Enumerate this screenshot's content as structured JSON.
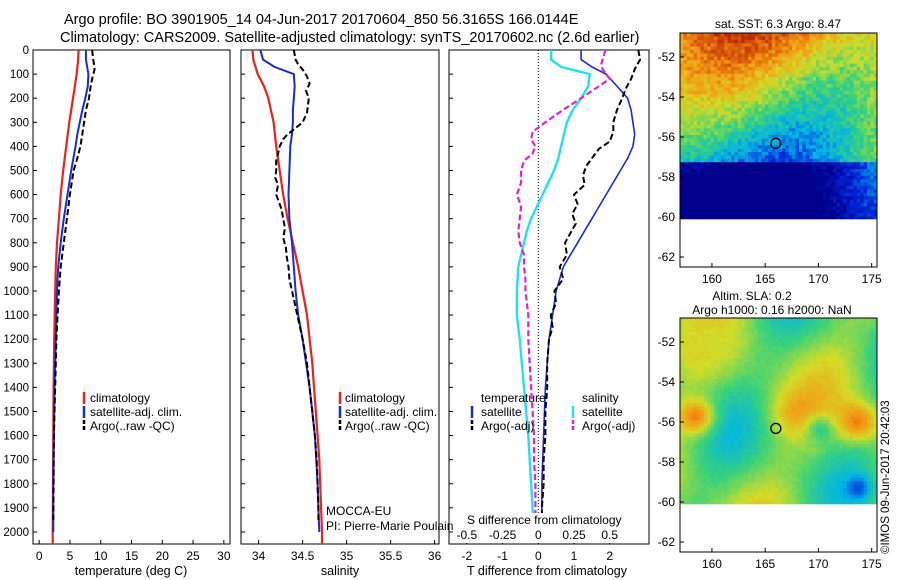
{
  "header": {
    "line1": "Argo profile: BO 3901905_14 04-Jun-2017 20170604_850 56.3165S 166.0144E",
    "line2": "Climatology: CARS2009. Satellite-adjusted climatology: synTS_20170602.nc (2.6d earlier)"
  },
  "depth_ticks": [
    "0",
    "100",
    "200",
    "300",
    "400",
    "500",
    "600",
    "700",
    "800",
    "900",
    "1000",
    "1100",
    "1200",
    "1300",
    "1400",
    "1500",
    "1600",
    "1700",
    "1800",
    "1900",
    "2000"
  ],
  "colors": {
    "climatology": "#e8231b",
    "satellite": "#1a2bd6",
    "argo": "#000000",
    "sal_satellite": "#22e0f0",
    "sal_argo": "#e020d8"
  },
  "chart_data": [
    {
      "type": "line",
      "xlabel": "temperature (deg C)",
      "ylabel": "",
      "xlim": [
        -1,
        31
      ],
      "ylim": [
        2050,
        0
      ],
      "xticks": [
        0,
        5,
        10,
        15,
        20,
        25,
        30
      ],
      "legend": {
        "position": "bottom-center",
        "entries": [
          "climatology",
          "satellite-adj. clim.",
          "Argo(..raw -QC)"
        ]
      },
      "series": [
        {
          "name": "climatology",
          "y": [
            0,
            50,
            100,
            150,
            200,
            250,
            300,
            400,
            500,
            600,
            700,
            800,
            900,
            1000,
            1200,
            1400,
            1600,
            1800,
            2000,
            2050
          ],
          "values": [
            6.4,
            6.3,
            6.1,
            5.8,
            5.5,
            5.2,
            4.9,
            4.4,
            3.9,
            3.5,
            3.2,
            2.9,
            2.7,
            2.6,
            2.45,
            2.35,
            2.3,
            2.25,
            2.2,
            2.2
          ]
        },
        {
          "name": "satellite-adj. clim.",
          "y": [
            0,
            40,
            70,
            100,
            150,
            200,
            250,
            300,
            350,
            400,
            500,
            600,
            700,
            800,
            900,
            1000,
            1200,
            1400,
            1600,
            1800,
            1950,
            2000
          ],
          "values": [
            7.6,
            7.6,
            7.8,
            8.0,
            7.9,
            7.5,
            7.0,
            6.6,
            6.2,
            5.9,
            5.2,
            4.6,
            4.0,
            3.5,
            3.1,
            2.9,
            2.7,
            2.5,
            2.4,
            2.3,
            2.3,
            2.3
          ]
        },
        {
          "name": "Argo(..raw -QC)",
          "y": [
            0,
            40,
            80,
            120,
            160,
            200,
            250,
            300,
            350,
            400,
            450,
            500,
            600,
            700,
            800,
            900,
            1000,
            1100,
            1200,
            1400,
            1600,
            1800,
            1950
          ],
          "values": [
            8.6,
            8.8,
            9.0,
            8.6,
            8.3,
            8.1,
            7.6,
            7.3,
            7.0,
            6.7,
            6.2,
            5.6,
            5.0,
            4.5,
            4.0,
            3.5,
            3.2,
            3.0,
            2.8,
            2.6,
            2.4,
            2.35,
            2.3
          ]
        }
      ]
    },
    {
      "type": "line",
      "xlabel": "salinity",
      "ylabel": "",
      "xlim": [
        33.8,
        36.05
      ],
      "ylim": [
        2050,
        0
      ],
      "xticks": [
        "34",
        "34.5",
        "35",
        "35.5",
        "36"
      ],
      "legend": {
        "position": "bottom-center",
        "entries": [
          "climatology",
          "satellite-adj. clim.",
          "Argo(..raw -QC)"
        ]
      },
      "annotations": [
        "MOCCA-EU",
        "PI: Pierre-Marie Poulain"
      ],
      "series": [
        {
          "name": "climatology",
          "y": [
            0,
            40,
            100,
            150,
            200,
            250,
            300,
            400,
            500,
            600,
            700,
            800,
            900,
            1000,
            1100,
            1200,
            1300,
            1400,
            1500,
            1600,
            1700,
            1800,
            1900,
            2000,
            2050
          ],
          "values": [
            33.93,
            33.94,
            33.99,
            34.06,
            34.11,
            34.14,
            34.17,
            34.2,
            34.24,
            34.28,
            34.33,
            34.39,
            34.45,
            34.5,
            34.55,
            34.58,
            34.61,
            34.63,
            34.65,
            34.67,
            34.69,
            34.7,
            34.71,
            34.72,
            34.72
          ]
        },
        {
          "name": "satellite-adj. clim.",
          "y": [
            0,
            40,
            70,
            100,
            150,
            200,
            250,
            300,
            350,
            400,
            500,
            600,
            700,
            800,
            900,
            1000,
            1100,
            1200,
            1400,
            1600,
            1800,
            1900,
            2000
          ],
          "values": [
            34.02,
            34.05,
            34.18,
            34.4,
            34.41,
            34.4,
            34.39,
            34.39,
            34.38,
            34.36,
            34.35,
            34.34,
            34.35,
            34.38,
            34.4,
            34.42,
            34.45,
            34.5,
            34.58,
            34.64,
            34.67,
            34.68,
            34.69
          ]
        },
        {
          "name": "Argo(..raw -QC)",
          "y": [
            0,
            40,
            60,
            80,
            110,
            140,
            170,
            200,
            260,
            300,
            330,
            350,
            370,
            400,
            430,
            460,
            500,
            530,
            560,
            600,
            630,
            660,
            700,
            740,
            780,
            820,
            860,
            900,
            950,
            1000,
            1050,
            1100,
            1150,
            1200,
            1300,
            1400,
            1500,
            1600,
            1700,
            1800,
            1900,
            1950
          ],
          "values": [
            34.4,
            34.42,
            34.45,
            34.5,
            34.55,
            34.58,
            34.54,
            34.57,
            34.55,
            34.5,
            34.4,
            34.33,
            34.28,
            34.24,
            34.22,
            34.2,
            34.2,
            34.19,
            34.22,
            34.2,
            34.23,
            34.26,
            34.28,
            34.3,
            34.28,
            34.31,
            34.32,
            34.34,
            34.35,
            34.38,
            34.41,
            34.44,
            34.47,
            34.5,
            34.55,
            34.58,
            34.61,
            34.64,
            34.66,
            34.67,
            34.68,
            34.68
          ]
        }
      ]
    },
    {
      "type": "line",
      "xlabel": "T difference from climatology",
      "xlabel_top": "S difference from climatology",
      "xlim": [
        -2.5,
        3.1
      ],
      "ylim": [
        2050,
        0
      ],
      "xticks": [
        "-2",
        "-1",
        "0",
        "1",
        "2"
      ],
      "xticks_top": [
        "-0.5",
        "-0.25",
        "0",
        "0.25",
        "0.5"
      ],
      "legend": {
        "position": "bottom-center",
        "col1": [
          "temperature",
          "satellite",
          "Argo(-adj)"
        ],
        "col2": [
          "salinity",
          "satellite",
          "Argo(-adj)"
        ]
      },
      "series": [
        {
          "name": "satellite",
          "group": "temperature",
          "y": [
            0,
            40,
            70,
            100,
            150,
            200,
            250,
            300,
            350,
            400,
            450,
            500,
            550,
            600,
            650,
            700,
            750,
            800,
            850,
            900,
            1000,
            1100,
            1200,
            1400,
            1600,
            1800,
            2000
          ],
          "values": [
            1.2,
            1.2,
            1.5,
            1.9,
            2.2,
            2.5,
            2.6,
            2.65,
            2.7,
            2.65,
            2.5,
            2.3,
            2.1,
            1.9,
            1.7,
            1.5,
            1.3,
            1.1,
            0.9,
            0.7,
            0.5,
            0.4,
            0.3,
            0.2,
            0.15,
            0.1,
            0.1
          ]
        },
        {
          "name": "Argo(-adj)",
          "group": "temperature",
          "y": [
            0,
            40,
            80,
            120,
            160,
            200,
            250,
            300,
            340,
            380,
            410,
            440,
            480,
            520,
            560,
            600,
            640,
            680,
            720,
            760,
            800,
            850,
            900,
            950,
            1000,
            1050,
            1100,
            1150,
            1200,
            1300,
            1400,
            1500,
            1600,
            1700,
            1800,
            1900,
            1950
          ],
          "values": [
            2.8,
            2.85,
            2.7,
            2.6,
            2.45,
            2.35,
            2.2,
            2.1,
            2.1,
            2.0,
            1.7,
            1.55,
            1.35,
            1.25,
            1.3,
            1.0,
            1.1,
            0.95,
            1.05,
            0.9,
            0.75,
            0.8,
            0.6,
            0.7,
            0.45,
            0.5,
            0.35,
            0.4,
            0.3,
            0.25,
            0.25,
            0.2,
            0.2,
            0.15,
            0.15,
            0.1,
            0.1
          ]
        },
        {
          "name": "satellite",
          "group": "salinity",
          "y": [
            0,
            40,
            70,
            100,
            150,
            200,
            250,
            300,
            350,
            400,
            450,
            500,
            550,
            600,
            650,
            700,
            750,
            800,
            850,
            900,
            1000,
            1100,
            1200,
            1400,
            1600,
            1800,
            2000
          ],
          "values": [
            0.09,
            0.09,
            0.16,
            0.36,
            0.35,
            0.3,
            0.24,
            0.2,
            0.18,
            0.16,
            0.14,
            0.11,
            0.07,
            0.03,
            -0.01,
            -0.05,
            -0.08,
            -0.1,
            -0.12,
            -0.14,
            -0.15,
            -0.15,
            -0.13,
            -0.1,
            -0.07,
            -0.05,
            -0.03
          ]
        },
        {
          "name": "Argo(-adj)",
          "group": "salinity",
          "y": [
            0,
            40,
            60,
            80,
            120,
            160,
            200,
            250,
            300,
            340,
            370,
            400,
            430,
            460,
            500,
            550,
            600,
            650,
            700,
            750,
            800,
            850,
            900,
            950,
            1000,
            1100,
            1200,
            1300,
            1400,
            1500,
            1600,
            1700,
            1800,
            1900,
            1950
          ],
          "values": [
            0.47,
            0.45,
            0.44,
            0.45,
            0.5,
            0.4,
            0.3,
            0.17,
            0.05,
            -0.04,
            -0.05,
            -0.02,
            -0.04,
            -0.1,
            -0.12,
            -0.12,
            -0.15,
            -0.12,
            -0.13,
            -0.14,
            -0.13,
            -0.1,
            -0.1,
            -0.09,
            -0.09,
            -0.07,
            -0.07,
            -0.06,
            -0.05,
            -0.04,
            -0.03,
            -0.03,
            -0.02,
            -0.02,
            -0.02
          ]
        }
      ]
    },
    {
      "type": "heatmap",
      "title": "sat. SST: 6.3 Argo: 8.47",
      "xlim": [
        157,
        175.5
      ],
      "ylim": [
        -62.5,
        -50.8
      ],
      "xticks": [
        "160",
        "165",
        "170",
        "175"
      ],
      "yticks": [
        "-52",
        "-54",
        "-56",
        "-58",
        "-60",
        "-62"
      ],
      "marker": {
        "lon": 166.0,
        "lat": -56.32
      }
    },
    {
      "type": "heatmap",
      "title": "Altim. SLA: 0.2",
      "subtitle": "Argo h1000: 0.16 h2000: NaN",
      "xlim": [
        157,
        175.5
      ],
      "ylim": [
        -62.5,
        -50.8
      ],
      "xticks": [
        "160",
        "165",
        "170",
        "175"
      ],
      "yticks": [
        "-52",
        "-54",
        "-56",
        "-58",
        "-60",
        "-62"
      ],
      "marker": {
        "lon": 166.0,
        "lat": -56.32
      }
    }
  ],
  "watermark": "©IMOS 09-Jun-2017 20:42:03"
}
